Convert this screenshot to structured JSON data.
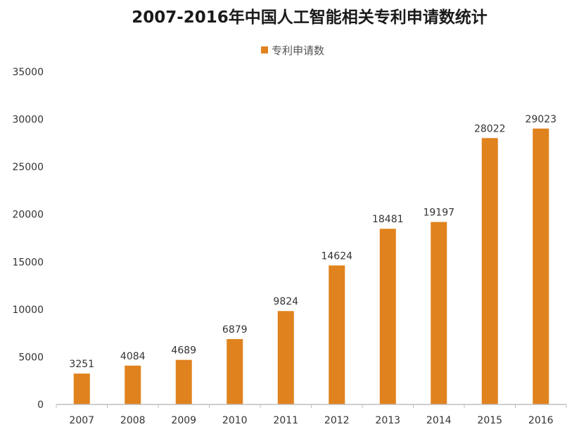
{
  "chart_data": {
    "type": "bar",
    "title": "2007-2016年中国人工智能相关专利申请数统计",
    "categories": [
      "2007",
      "2008",
      "2009",
      "2010",
      "2011",
      "2012",
      "2013",
      "2014",
      "2015",
      "2016"
    ],
    "series": [
      {
        "name": "专利申请数",
        "values": [
          3251,
          4084,
          4689,
          6879,
          9824,
          14624,
          18481,
          19197,
          28022,
          29023
        ]
      }
    ],
    "xlabel": "",
    "ylabel": "",
    "ylim": [
      0,
      35000
    ],
    "yticks": [
      0,
      5000,
      10000,
      15000,
      20000,
      25000,
      30000,
      35000
    ],
    "grid": false,
    "legend": "top",
    "data_labels": true,
    "colors": {
      "bar": "#E0821E",
      "axis": "#BFBFBF"
    }
  }
}
